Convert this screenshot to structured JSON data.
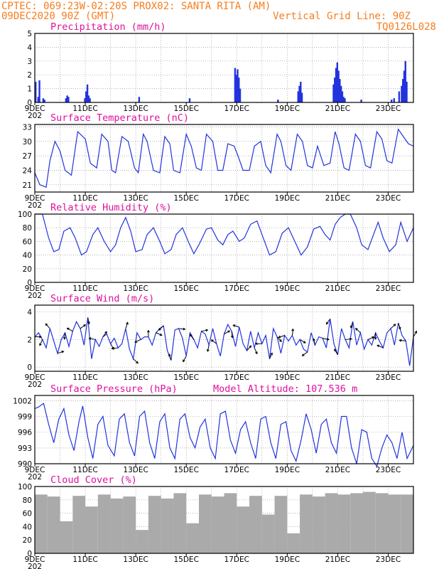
{
  "header": {
    "line1": "CPTEC:   069:23W-02:20S   PROX02: SANTA RITA (AM)",
    "line2_left": "09DEC2020 90Z (GMT)",
    "line2_right": "Vertical Grid Line: 90Z",
    "line3_right": "TQ0126L028"
  },
  "colors": {
    "header": "#f47e20",
    "title": "#e0109c",
    "series": "#2233dd",
    "cloud": "#aaaaaa",
    "grid": "#999999"
  },
  "x_axis": {
    "labels": [
      "9DEC",
      "11DEC",
      "13DEC",
      "15DEC",
      "17DEC",
      "19DEC",
      "21DEC",
      "23DEC"
    ],
    "label_days": [
      0,
      2,
      4,
      6,
      8,
      10,
      12,
      14
    ],
    "year_stub": "202",
    "range_days": [
      0,
      15
    ]
  },
  "panels": [
    {
      "key": "precip",
      "title": "Precipitation (mm/h)",
      "extra": "",
      "yticks": [
        "0",
        "1",
        "2",
        "3",
        "4",
        "5"
      ],
      "ylim": [
        0,
        5
      ]
    },
    {
      "key": "temp",
      "title": "Surface Temperature (nC)",
      "extra": "",
      "yticks": [
        "21",
        "24",
        "27",
        "30",
        "33"
      ],
      "ylim": [
        19.5,
        33.5
      ]
    },
    {
      "key": "rh",
      "title": "Relative Humidity (%)",
      "extra": "",
      "yticks": [
        "0",
        "20",
        "40",
        "60",
        "80",
        "100"
      ],
      "ylim": [
        0,
        100
      ]
    },
    {
      "key": "wind",
      "title": "Surface Wind (m/s)",
      "extra": "",
      "yticks": [
        "0",
        "2",
        "4"
      ],
      "ylim": [
        -0.3,
        4.5
      ]
    },
    {
      "key": "pres",
      "title": "Surface Pressure (hPa)",
      "extra": "Model Altitude: 107.536 m",
      "yticks": [
        "990",
        "993",
        "996",
        "999",
        "1002"
      ],
      "ylim": [
        990,
        1003
      ]
    },
    {
      "key": "cloud",
      "title": "Cloud Cover (%)",
      "extra": "",
      "yticks": [
        "0",
        "20",
        "40",
        "60",
        "80",
        "100"
      ],
      "ylim": [
        0,
        100
      ]
    }
  ],
  "chart_data": [
    {
      "type": "bar",
      "title": "Precipitation (mm/h)",
      "ylabel": "mm/h",
      "ylim": [
        0,
        5
      ],
      "x_days": [
        0.0,
        0.1,
        0.15,
        0.3,
        0.35,
        1.2,
        1.25,
        1.3,
        1.95,
        2.0,
        2.05,
        2.1,
        2.15,
        4.1,
        6.1,
        7.9,
        7.95,
        8.0,
        8.05,
        8.1,
        9.6,
        10.4,
        10.45,
        10.5,
        10.55,
        11.8,
        11.85,
        11.9,
        11.95,
        12.0,
        12.05,
        12.1,
        12.15,
        12.2,
        12.25,
        12.9,
        14.1,
        14.2,
        14.4,
        14.5,
        14.55,
        14.6,
        14.65,
        14.7
      ],
      "values": [
        1.5,
        0.4,
        1.6,
        0.3,
        0.2,
        0.3,
        0.5,
        0.4,
        0.3,
        0.8,
        1.3,
        0.5,
        0.3,
        0.4,
        0.3,
        2.5,
        2.0,
        2.4,
        1.8,
        1.0,
        0.2,
        0.8,
        1.2,
        1.5,
        0.7,
        1.3,
        1.8,
        2.5,
        2.9,
        2.3,
        1.7,
        1.2,
        0.8,
        0.4,
        0.3,
        0.2,
        0.2,
        0.3,
        0.8,
        1.2,
        1.7,
        2.3,
        3.0,
        1.5
      ]
    },
    {
      "type": "line",
      "title": "Surface Temperature (nC)",
      "ylabel": "nC",
      "ylim": [
        19.5,
        33.5
      ],
      "x_days": [
        0,
        0.2,
        0.45,
        0.6,
        0.8,
        1.0,
        1.2,
        1.45,
        1.7,
        2.0,
        2.2,
        2.45,
        2.65,
        2.9,
        3.05,
        3.2,
        3.45,
        3.7,
        3.95,
        4.1,
        4.3,
        4.45,
        4.7,
        4.95,
        5.15,
        5.35,
        5.5,
        5.75,
        6.0,
        6.2,
        6.4,
        6.6,
        6.8,
        7.05,
        7.25,
        7.45,
        7.65,
        7.9,
        8.05,
        8.25,
        8.5,
        8.7,
        8.95,
        9.15,
        9.35,
        9.6,
        9.75,
        9.95,
        10.15,
        10.4,
        10.6,
        10.8,
        11.0,
        11.2,
        11.45,
        11.7,
        11.9,
        12.05,
        12.25,
        12.45,
        12.7,
        12.9,
        13.1,
        13.3,
        13.55,
        13.75,
        13.95,
        14.15,
        14.4,
        14.6,
        14.8,
        15.0
      ],
      "values": [
        23.5,
        21.0,
        20.5,
        26.0,
        30.0,
        28.0,
        24.0,
        23.0,
        32.0,
        30.5,
        25.5,
        24.5,
        31.5,
        30.0,
        24.0,
        23.5,
        31.0,
        30.0,
        24.5,
        23.5,
        31.5,
        30.0,
        24.0,
        23.5,
        31.0,
        29.5,
        24.0,
        23.5,
        31.5,
        29.0,
        24.5,
        24.0,
        31.5,
        30.0,
        24.0,
        24.0,
        29.5,
        29.0,
        27.0,
        24.0,
        24.0,
        29.0,
        30.0,
        25.0,
        23.5,
        31.5,
        30.0,
        25.0,
        24.0,
        31.5,
        30.0,
        25.0,
        24.5,
        29.0,
        25.0,
        25.5,
        32.0,
        29.5,
        24.5,
        24.0,
        31.5,
        30.0,
        25.0,
        24.5,
        32.0,
        30.5,
        26.0,
        25.5,
        32.5,
        31.0,
        29.5,
        29.0
      ]
    },
    {
      "type": "line",
      "title": "Relative Humidity (%)",
      "ylabel": "%",
      "ylim": [
        0,
        100
      ],
      "x_days": [
        0,
        0.3,
        0.55,
        0.75,
        0.95,
        1.15,
        1.4,
        1.6,
        1.85,
        2.05,
        2.3,
        2.5,
        2.75,
        3.0,
        3.2,
        3.4,
        3.6,
        3.8,
        4.0,
        4.25,
        4.45,
        4.7,
        4.95,
        5.15,
        5.4,
        5.6,
        5.85,
        6.1,
        6.3,
        6.5,
        6.8,
        7.0,
        7.25,
        7.45,
        7.65,
        7.85,
        8.1,
        8.3,
        8.55,
        8.8,
        9.05,
        9.3,
        9.55,
        9.8,
        10.05,
        10.3,
        10.55,
        10.8,
        11.05,
        11.3,
        11.5,
        11.7,
        11.9,
        12.1,
        12.3,
        12.5,
        12.75,
        12.95,
        13.2,
        13.4,
        13.6,
        13.8,
        14.05,
        14.3,
        14.5,
        14.75,
        15.0
      ],
      "values": [
        100,
        100,
        65,
        45,
        48,
        75,
        80,
        65,
        40,
        45,
        70,
        80,
        60,
        45,
        55,
        80,
        95,
        75,
        45,
        48,
        70,
        80,
        60,
        42,
        48,
        70,
        80,
        58,
        42,
        55,
        78,
        80,
        62,
        55,
        70,
        75,
        60,
        65,
        85,
        90,
        65,
        40,
        45,
        72,
        80,
        60,
        40,
        52,
        78,
        82,
        70,
        62,
        85,
        95,
        100,
        100,
        80,
        55,
        48,
        68,
        88,
        65,
        45,
        55,
        88,
        60,
        80
      ]
    },
    {
      "type": "line",
      "title": "Surface Wind (m/s)",
      "ylabel": "m/s",
      "ylim": [
        -0.3,
        4.5
      ],
      "x_days": [
        0,
        0.15,
        0.3,
        0.45,
        0.6,
        0.75,
        0.9,
        1.05,
        1.2,
        1.35,
        1.5,
        1.65,
        1.8,
        1.95,
        2.1,
        2.25,
        2.4,
        2.55,
        2.7,
        2.85,
        3.0,
        3.15,
        3.3,
        3.45,
        3.6,
        3.75,
        3.9,
        4.05,
        4.2,
        4.35,
        4.5,
        4.65,
        4.8,
        4.95,
        5.1,
        5.25,
        5.4,
        5.55,
        5.7,
        5.85,
        6.0,
        6.15,
        6.3,
        6.45,
        6.6,
        6.75,
        6.9,
        7.05,
        7.2,
        7.35,
        7.5,
        7.65,
        7.8,
        7.95,
        8.1,
        8.25,
        8.4,
        8.55,
        8.7,
        8.85,
        9.0,
        9.15,
        9.3,
        9.45,
        9.6,
        9.75,
        9.9,
        10.05,
        10.2,
        10.35,
        10.5,
        10.65,
        10.8,
        10.95,
        11.1,
        11.25,
        11.4,
        11.55,
        11.7,
        11.85,
        12.0,
        12.15,
        12.3,
        12.45,
        12.6,
        12.75,
        12.9,
        13.05,
        13.2,
        13.35,
        13.5,
        13.65,
        13.8,
        13.95,
        14.1,
        14.25,
        14.4,
        14.55,
        14.7,
        14.85,
        15.0
      ],
      "values": [
        2.2,
        2.5,
        2.0,
        1.4,
        2.8,
        1.9,
        1.0,
        2.0,
        2.5,
        1.5,
        2.6,
        3.3,
        2.8,
        1.6,
        3.6,
        0.6,
        2.0,
        1.5,
        2.2,
        2.4,
        1.7,
        2.1,
        1.4,
        1.7,
        2.8,
        1.3,
        0.6,
        2.5,
        2.0,
        2.2,
        2.2,
        1.6,
        2.5,
        2.8,
        3.0,
        1.2,
        0.5,
        2.7,
        2.8,
        2.1,
        0.8,
        2.5,
        2.0,
        1.4,
        2.6,
        2.4,
        1.6,
        2.8,
        1.7,
        0.8,
        2.4,
        3.1,
        2.6,
        1.5,
        2.9,
        1.7,
        1.2,
        2.6,
        1.4,
        2.5,
        1.7,
        2.3,
        0.6,
        2.8,
        2.2,
        1.0,
        2.3,
        1.9,
        2.3,
        1.6,
        2.0,
        1.3,
        1.1,
        2.5,
        1.6,
        2.2,
        2.1,
        1.4,
        3.5,
        1.7,
        0.9,
        2.8,
        2.0,
        1.4,
        3.3,
        1.6,
        2.5,
        1.3,
        2.0,
        1.6,
        2.5,
        1.9,
        1.4,
        2.5,
        2.8,
        1.6,
        3.2,
        2.3,
        1.9,
        0.1,
        2.2
      ]
    },
    {
      "type": "line",
      "title": "Surface Pressure (hPa)",
      "ylabel": "hPa",
      "ylim": [
        990,
        1003
      ],
      "x_days": [
        0,
        0.15,
        0.35,
        0.55,
        0.75,
        0.95,
        1.15,
        1.35,
        1.55,
        1.75,
        1.9,
        2.1,
        2.3,
        2.5,
        2.7,
        2.9,
        3.15,
        3.35,
        3.55,
        3.75,
        3.95,
        4.15,
        4.35,
        4.55,
        4.75,
        4.95,
        5.15,
        5.35,
        5.55,
        5.75,
        5.95,
        6.15,
        6.35,
        6.55,
        6.75,
        6.95,
        7.15,
        7.35,
        7.55,
        7.75,
        7.95,
        8.15,
        8.35,
        8.55,
        8.75,
        8.95,
        9.15,
        9.35,
        9.55,
        9.75,
        9.95,
        10.15,
        10.35,
        10.55,
        10.75,
        10.95,
        11.15,
        11.35,
        11.55,
        11.75,
        11.95,
        12.15,
        12.35,
        12.55,
        12.75,
        12.95,
        13.15,
        13.35,
        13.55,
        13.75,
        13.95,
        14.15,
        14.35,
        14.55,
        14.75,
        15.0
      ],
      "values": [
        1000.5,
        1000.8,
        1001.5,
        997.5,
        994.0,
        998.5,
        1000.5,
        995.5,
        992.5,
        998.0,
        1001.0,
        995.0,
        991.0,
        997.5,
        999.0,
        993.5,
        991.5,
        998.5,
        999.5,
        994.0,
        991.5,
        999.0,
        1000.0,
        994.0,
        991.0,
        998.0,
        999.5,
        993.0,
        991.0,
        998.5,
        999.5,
        995.0,
        993.0,
        997.0,
        998.5,
        993.0,
        991.0,
        999.5,
        1000.0,
        994.5,
        992.0,
        996.5,
        998.0,
        994.0,
        991.0,
        998.5,
        999.0,
        994.0,
        991.0,
        997.5,
        998.0,
        992.5,
        990.5,
        994.5,
        999.5,
        996.5,
        992.0,
        997.5,
        998.5,
        994.0,
        992.0,
        999.0,
        999.0,
        993.0,
        990.0,
        996.5,
        996.0,
        991.0,
        989.5,
        993.0,
        995.5,
        994.0,
        991.0,
        996.0,
        991.0,
        993.5
      ]
    },
    {
      "type": "bar",
      "title": "Cloud Cover (%)",
      "ylabel": "%",
      "ylim": [
        0,
        100
      ],
      "x_days": [
        0,
        0.5,
        1.0,
        1.5,
        2.0,
        2.5,
        3.0,
        3.5,
        4.0,
        4.5,
        5.0,
        5.5,
        6.0,
        6.5,
        7.0,
        7.5,
        8.0,
        8.5,
        9.0,
        9.5,
        10.0,
        10.5,
        11.0,
        11.5,
        12.0,
        12.5,
        13.0,
        13.5,
        14.0,
        14.5
      ],
      "values": [
        88,
        85,
        48,
        86,
        70,
        88,
        82,
        85,
        35,
        86,
        82,
        90,
        45,
        88,
        85,
        90,
        70,
        86,
        58,
        86,
        30,
        88,
        85,
        90,
        88,
        90,
        92,
        90,
        88,
        88
      ]
    }
  ]
}
